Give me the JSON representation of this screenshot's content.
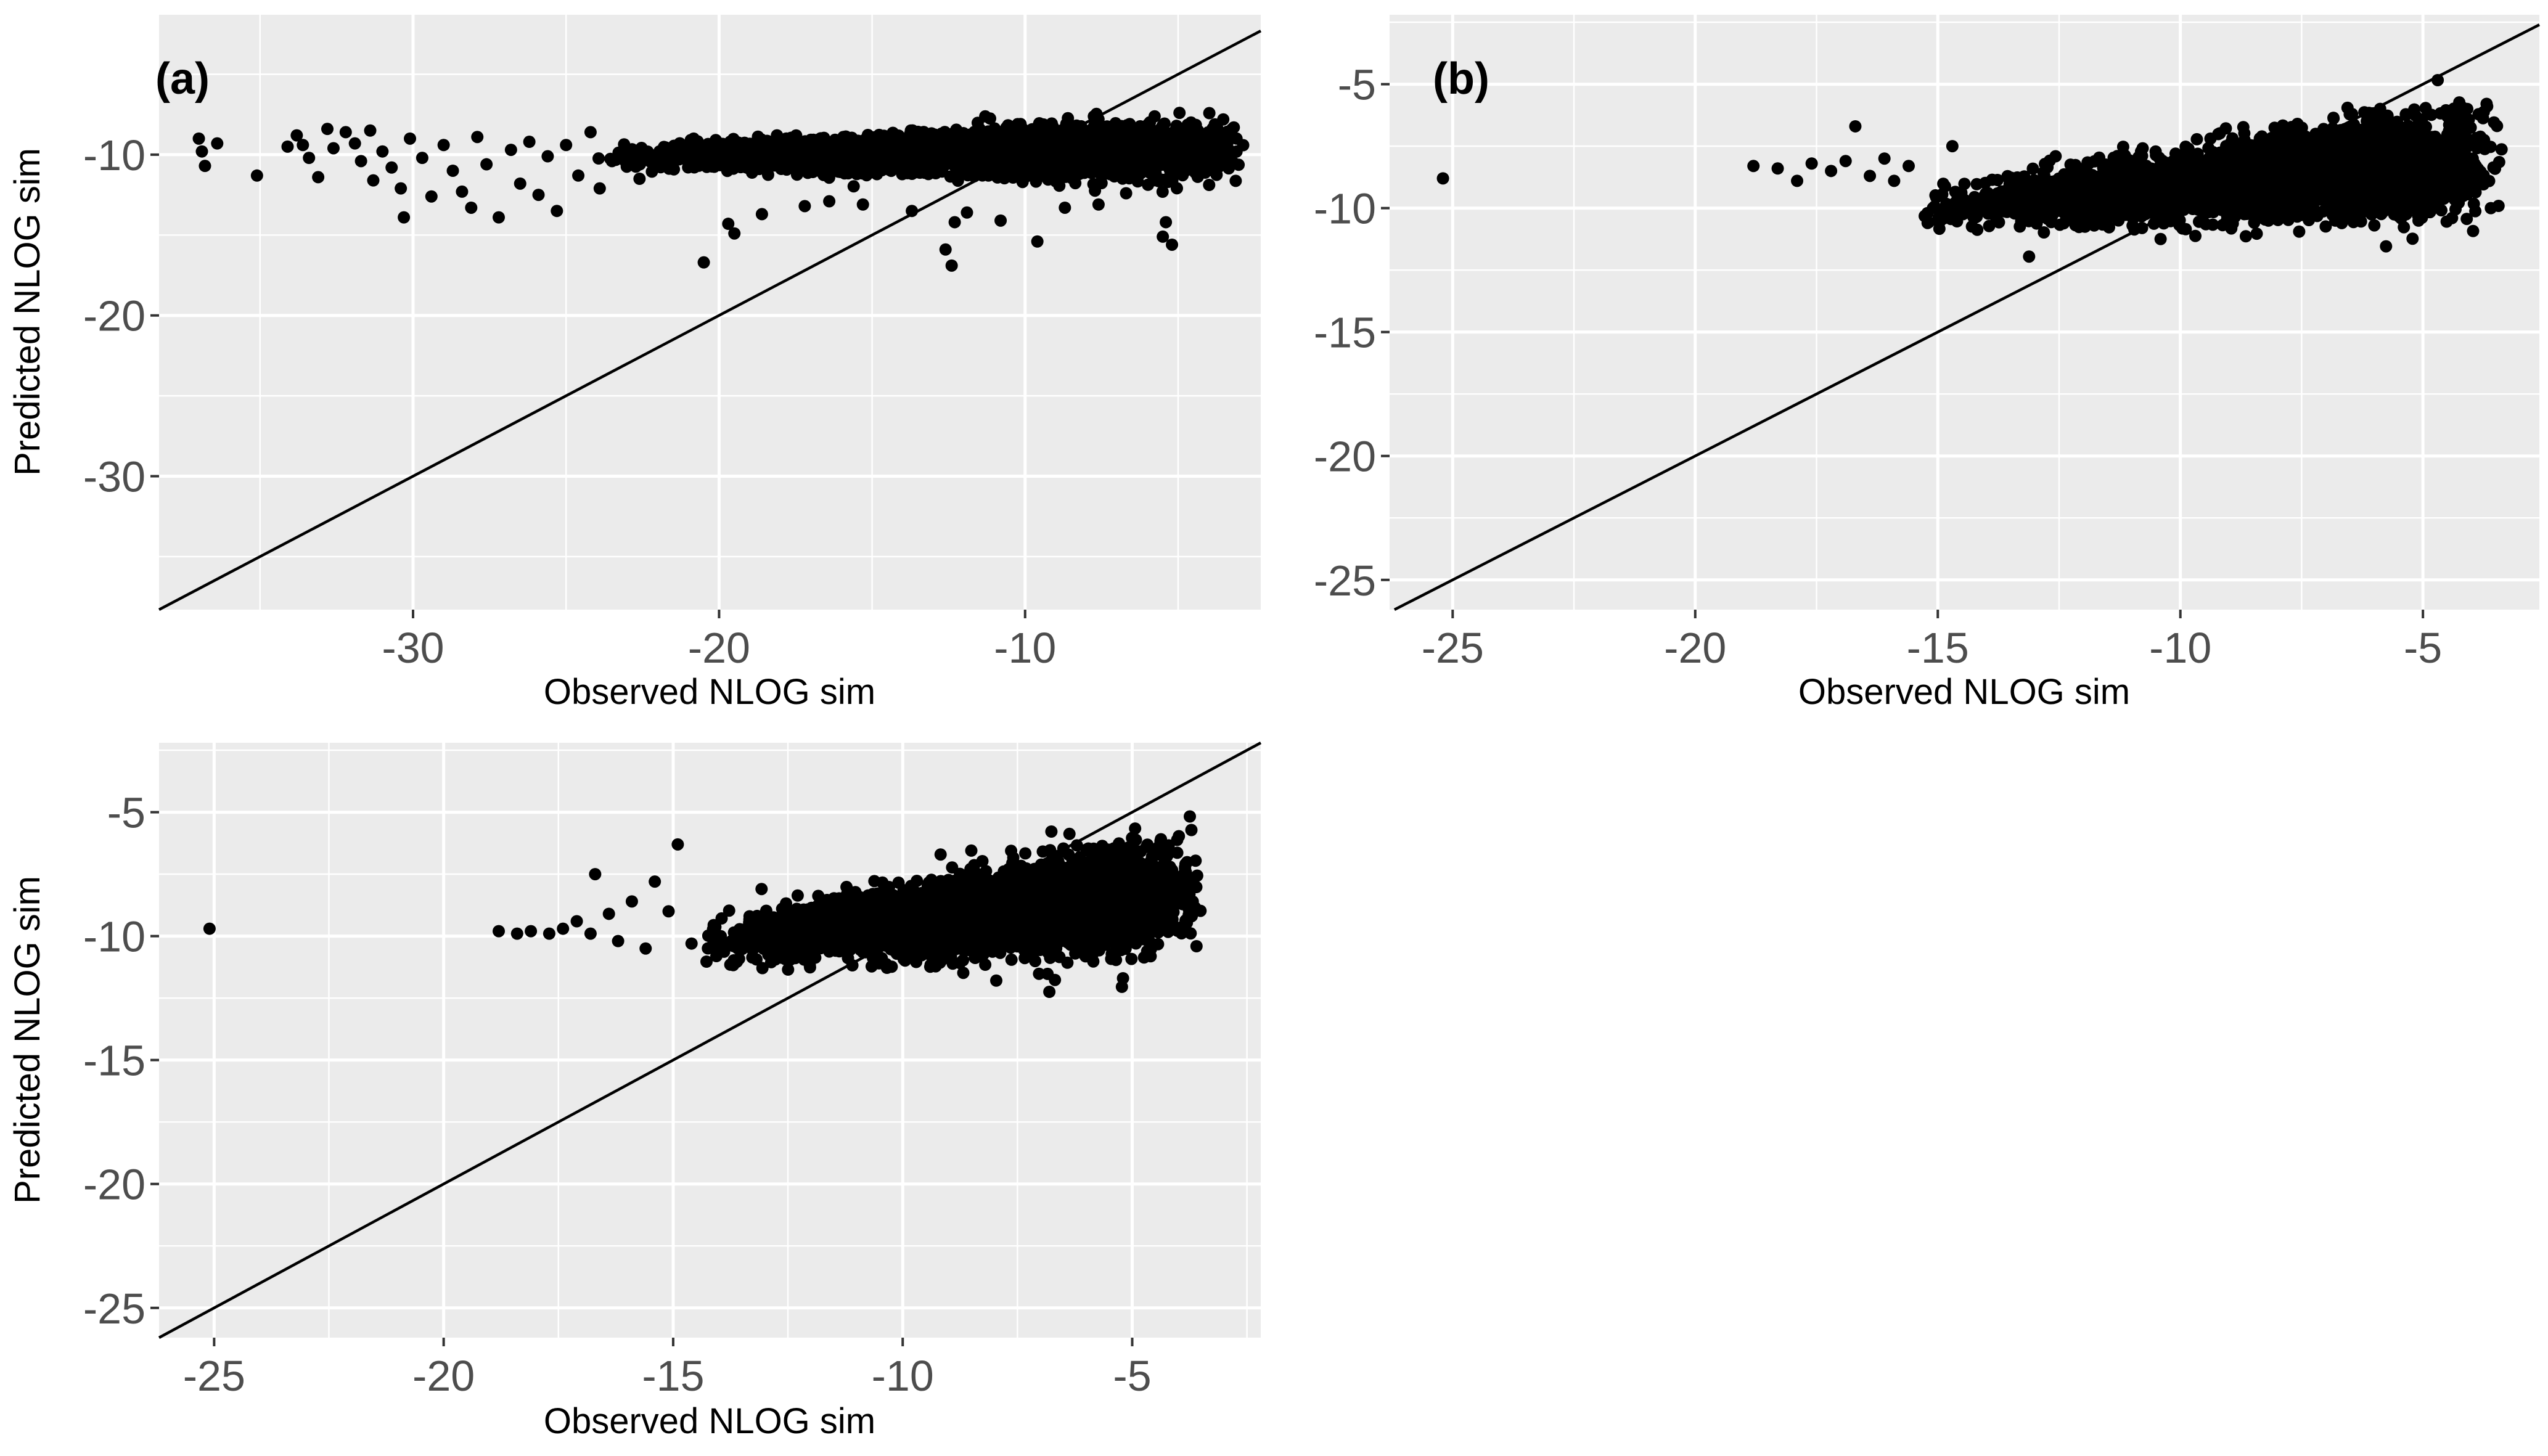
{
  "chart_data": [
    {
      "type": "scatter",
      "panel_label": "(a)",
      "xlabel": "Observed NLOG sim",
      "ylabel": "Predicted NLOG sim",
      "xlim": [
        -38.3,
        -2.3
      ],
      "ylim": [
        -38.3,
        -1.3
      ],
      "xticks": [
        -30,
        -20,
        -10
      ],
      "yticks": [
        -30,
        -20,
        -10
      ],
      "xtick_labels": [
        "-30",
        "-20",
        "-10"
      ],
      "ytick_labels": [
        "-30",
        "-20",
        "-10"
      ],
      "reference_line": "y = x",
      "grid": true,
      "point_color": "#000000",
      "cloud": {
        "x_range": [
          -24,
          -2.8
        ],
        "x_peak": -8.5,
        "y_center": -9.8,
        "y_spread": 0.9,
        "n_points": 3200
      },
      "points": [
        [
          -37.0,
          -9.0
        ],
        [
          -36.9,
          -9.8
        ],
        [
          -36.8,
          -10.7
        ],
        [
          -36.4,
          -9.3
        ],
        [
          -35.1,
          -11.3
        ],
        [
          -34.1,
          -9.5
        ],
        [
          -33.8,
          -8.8
        ],
        [
          -33.6,
          -9.4
        ],
        [
          -33.4,
          -10.2
        ],
        [
          -33.1,
          -11.4
        ],
        [
          -32.8,
          -8.4
        ],
        [
          -32.6,
          -9.6
        ],
        [
          -32.2,
          -8.6
        ],
        [
          -31.9,
          -9.3
        ],
        [
          -31.7,
          -10.4
        ],
        [
          -31.4,
          -8.5
        ],
        [
          -31.3,
          -11.6
        ],
        [
          -31.0,
          -9.8
        ],
        [
          -30.7,
          -10.8
        ],
        [
          -30.4,
          -12.1
        ],
        [
          -30.1,
          -9.0
        ],
        [
          -30.3,
          -13.9
        ],
        [
          -29.7,
          -10.2
        ],
        [
          -29.4,
          -12.6
        ],
        [
          -29.0,
          -9.4
        ],
        [
          -28.7,
          -11.0
        ],
        [
          -28.4,
          -12.3
        ],
        [
          -28.1,
          -13.3
        ],
        [
          -27.9,
          -8.9
        ],
        [
          -27.6,
          -10.6
        ],
        [
          -27.2,
          -13.9
        ],
        [
          -26.8,
          -9.7
        ],
        [
          -26.5,
          -11.8
        ],
        [
          -26.2,
          -9.2
        ],
        [
          -25.9,
          -12.5
        ],
        [
          -25.6,
          -10.1
        ],
        [
          -25.3,
          -13.5
        ],
        [
          -25.0,
          -9.4
        ],
        [
          -24.6,
          -11.3
        ],
        [
          -24.2,
          -8.6
        ],
        [
          -23.9,
          -12.1
        ],
        [
          -23.5,
          -10.4
        ],
        [
          -22.6,
          -11.5
        ],
        [
          -20.5,
          -16.7
        ],
        [
          -19.7,
          -14.3
        ],
        [
          -19.5,
          -14.9
        ],
        [
          -18.6,
          -13.7
        ],
        [
          -17.2,
          -13.2
        ],
        [
          -16.4,
          -12.9
        ],
        [
          -15.3,
          -13.1
        ],
        [
          -13.7,
          -13.5
        ],
        [
          -12.6,
          -15.9
        ],
        [
          -12.4,
          -16.9
        ],
        [
          -12.3,
          -14.2
        ],
        [
          -11.9,
          -13.6
        ],
        [
          -10.8,
          -14.1
        ],
        [
          -9.6,
          -15.4
        ],
        [
          -8.7,
          -13.3
        ],
        [
          -7.6,
          -13.1
        ],
        [
          -6.7,
          -12.4
        ],
        [
          -5.4,
          -14.2
        ],
        [
          -5.5,
          -15.1
        ],
        [
          -5.2,
          -15.6
        ]
      ]
    },
    {
      "type": "scatter",
      "panel_label": "(b)",
      "xlabel": "Observed NLOG sim",
      "ylabel": "",
      "xlim": [
        -26.3,
        -2.6
      ],
      "ylim": [
        -26.2,
        -2.2
      ],
      "xticks": [
        -25,
        -20,
        -15,
        -10,
        -5
      ],
      "yticks": [
        -25,
        -20,
        -15,
        -10,
        -5
      ],
      "xtick_labels": [
        "-25",
        "-20",
        "-15",
        "-10",
        "-5"
      ],
      "ytick_labels": [
        "-25",
        "-20",
        "-15",
        "-10",
        "-5"
      ],
      "reference_line": "y = x",
      "grid": true,
      "point_color": "#000000",
      "cloud": {
        "x_range": [
          -15.5,
          -3.3
        ],
        "x_peak": -6.2,
        "y_center": -8.4,
        "y_spread": 1.1,
        "n_points": 3200
      },
      "points": [
        [
          -25.2,
          -8.8
        ],
        [
          -18.8,
          -8.3
        ],
        [
          -18.3,
          -8.4
        ],
        [
          -17.9,
          -8.9
        ],
        [
          -17.6,
          -8.2
        ],
        [
          -17.2,
          -8.5
        ],
        [
          -16.9,
          -8.1
        ],
        [
          -16.7,
          -6.7
        ],
        [
          -16.4,
          -8.7
        ],
        [
          -16.1,
          -8.0
        ],
        [
          -15.9,
          -8.9
        ],
        [
          -15.6,
          -8.3
        ],
        [
          -15.1,
          -10.0
        ],
        [
          -14.7,
          -7.5
        ],
        [
          -13.9,
          -9.6
        ],
        [
          -12.6,
          -9.9
        ],
        [
          -11.2,
          -10.2
        ],
        [
          -10.5,
          -10.4
        ],
        [
          -5.1,
          -10.3
        ],
        [
          -4.4,
          -10.4
        ],
        [
          -3.6,
          -10.0
        ]
      ]
    },
    {
      "type": "scatter",
      "panel_label": "",
      "xlabel": "Observed NLOG sim",
      "ylabel": "Predicted NLOG sim",
      "xlim": [
        -26.2,
        -2.2
      ],
      "ylim": [
        -26.2,
        -2.2
      ],
      "xticks": [
        -25,
        -20,
        -15,
        -10,
        -5
      ],
      "yticks": [
        -25,
        -20,
        -15,
        -10,
        -5
      ],
      "xtick_labels": [
        "-25",
        "-20",
        "-15",
        "-10",
        "-5"
      ],
      "ytick_labels": [
        "-25",
        "-20",
        "-15",
        "-10",
        "-5"
      ],
      "reference_line": "y = x",
      "grid": true,
      "point_color": "#000000",
      "cloud": {
        "x_range": [
          -14.6,
          -3.4
        ],
        "x_peak": -6.0,
        "y_center": -8.7,
        "y_spread": 1.15,
        "n_points": 3200
      },
      "points": [
        [
          -25.1,
          -9.7
        ],
        [
          -18.8,
          -9.8
        ],
        [
          -18.4,
          -9.9
        ],
        [
          -18.1,
          -9.8
        ],
        [
          -17.7,
          -9.9
        ],
        [
          -17.4,
          -9.7
        ],
        [
          -17.1,
          -9.4
        ],
        [
          -16.8,
          -9.9
        ],
        [
          -16.7,
          -7.5
        ],
        [
          -16.4,
          -9.1
        ],
        [
          -16.2,
          -10.2
        ],
        [
          -15.9,
          -8.6
        ],
        [
          -15.6,
          -10.5
        ],
        [
          -15.4,
          -7.8
        ],
        [
          -15.1,
          -9.0
        ],
        [
          -14.9,
          -6.3
        ],
        [
          -14.6,
          -10.3
        ]
      ]
    }
  ]
}
